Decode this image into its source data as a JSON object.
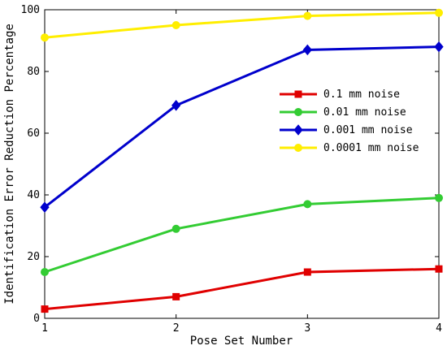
{
  "chart_data": {
    "type": "line",
    "title": "",
    "xlabel": "Pose Set Number",
    "ylabel": "Identification Error Reduction Percentage",
    "x": [
      1,
      2,
      3,
      4
    ],
    "xlim": [
      1,
      4
    ],
    "ylim": [
      0,
      100
    ],
    "xticks": [
      "1",
      "2",
      "3",
      "4"
    ],
    "yticks": [
      "0",
      "20",
      "40",
      "60",
      "80",
      "100"
    ],
    "grid": false,
    "legend_position": "center-right",
    "series": [
      {
        "name": "0.1 mm noise",
        "values": [
          3,
          7,
          15,
          16
        ],
        "color": "#e00000",
        "marker": "square"
      },
      {
        "name": "0.01 mm noise",
        "values": [
          15,
          29,
          37,
          39
        ],
        "color": "#33cc33",
        "marker": "circle"
      },
      {
        "name": "0.001 mm noise",
        "values": [
          36,
          69,
          87,
          88
        ],
        "color": "#0000cc",
        "marker": "diamond"
      },
      {
        "name": "0.0001 mm noise",
        "values": [
          91,
          95,
          98,
          99
        ],
        "color": "#ffee00",
        "marker": "circle"
      }
    ]
  }
}
